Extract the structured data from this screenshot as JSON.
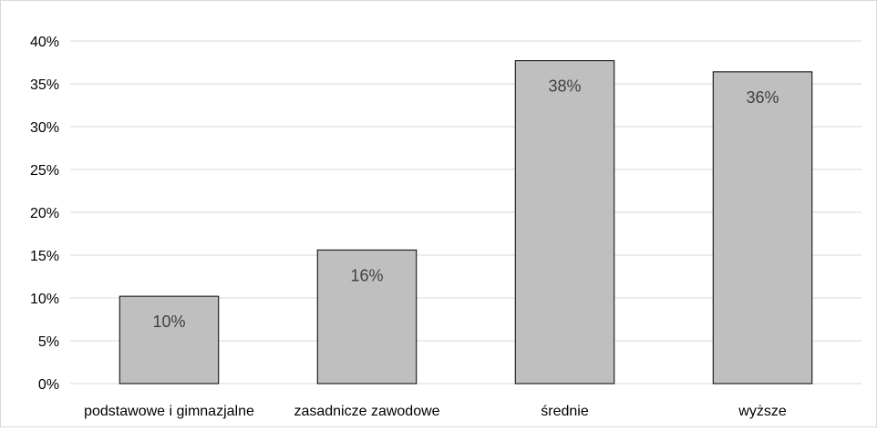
{
  "chart_data": {
    "type": "bar",
    "title": "",
    "xlabel": "",
    "ylabel": "",
    "categories": [
      "podstawowe i gimnazjalne",
      "zasadnicze zawodowe",
      "średnie",
      "wyższe"
    ],
    "values": [
      10.2,
      15.6,
      37.7,
      36.4
    ],
    "data_labels": [
      "10%",
      "16%",
      "38%",
      "36%"
    ],
    "ylim": [
      0,
      40
    ],
    "yticks": [
      0,
      5,
      10,
      15,
      20,
      25,
      30,
      35,
      40
    ],
    "ytick_labels": [
      "0%",
      "5%",
      "10%",
      "15%",
      "20%",
      "25%",
      "30%",
      "35%",
      "40%"
    ],
    "grid": true,
    "legend": "none",
    "colors": {
      "bar_fill": "#bfbfbf",
      "bar_stroke": "#000000",
      "gridline": "#d9d9d9",
      "axis_line": "#d9d9d9",
      "text": "#000000",
      "data_label": "#404040"
    }
  }
}
